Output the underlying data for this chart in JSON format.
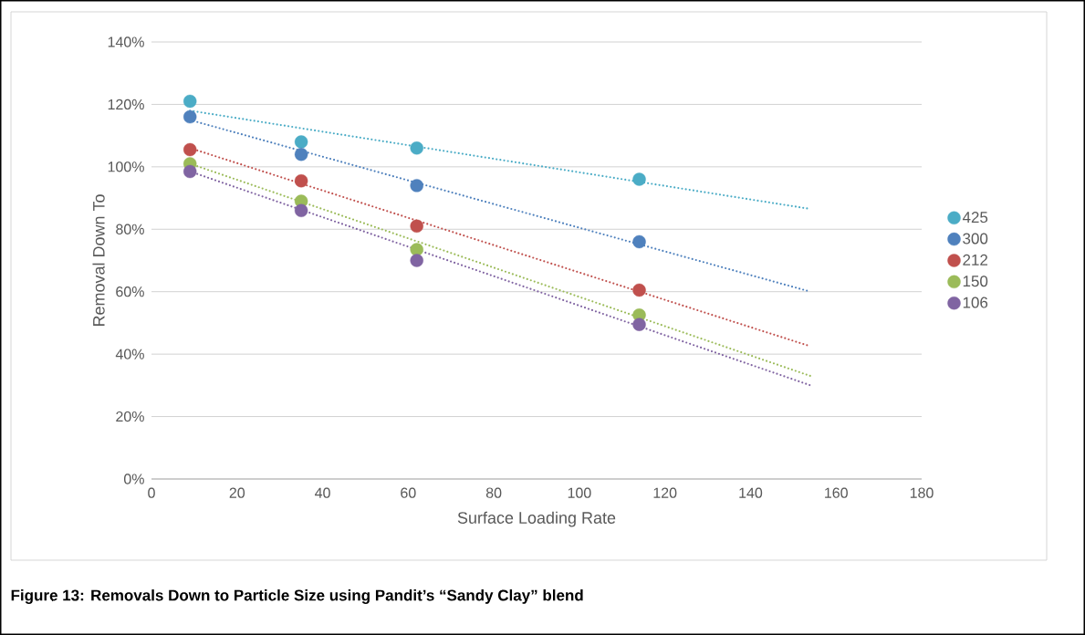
{
  "chart_data": {
    "type": "scatter",
    "xlabel": "Surface Loading Rate",
    "ylabel": "Removal Down To",
    "annotations": [
      "Figure 13:  Removals Down to Particle Size using Pandit’s “Sandy Clay” blend"
    ],
    "xlim": [
      0,
      180
    ],
    "xticks": [
      0,
      20,
      40,
      60,
      80,
      100,
      120,
      140,
      160,
      180
    ],
    "ylim": [
      0,
      140
    ],
    "yticks": [
      {
        "value": 0,
        "label": "0%"
      },
      {
        "value": 20,
        "label": "20%"
      },
      {
        "value": 40,
        "label": "40%"
      },
      {
        "value": 60,
        "label": "60%"
      },
      {
        "value": 80,
        "label": "80%"
      },
      {
        "value": 100,
        "label": "100%"
      },
      {
        "value": 120,
        "label": "120%"
      },
      {
        "value": 140,
        "label": "140%"
      }
    ],
    "grid": "y",
    "legend": "right",
    "marker": "circle",
    "series": [
      {
        "name": "425",
        "color": "#4bacc6",
        "x": [
          9,
          35,
          62,
          114
        ],
        "values": [
          121,
          108,
          106,
          96
        ]
      },
      {
        "name": "300",
        "color": "#4f81bd",
        "x": [
          9,
          35,
          62,
          114
        ],
        "values": [
          116,
          104,
          94,
          76
        ]
      },
      {
        "name": "212",
        "color": "#c0504d",
        "x": [
          9,
          35,
          62,
          114
        ],
        "values": [
          105.5,
          95.5,
          81,
          60.5
        ]
      },
      {
        "name": "150",
        "color": "#9bbb59",
        "x": [
          9,
          35,
          62,
          114
        ],
        "values": [
          101,
          89,
          73.5,
          52.5
        ]
      },
      {
        "name": "106",
        "color": "#8064a2",
        "x": [
          9,
          35,
          62,
          114
        ],
        "values": [
          98.5,
          86,
          70,
          49.5
        ]
      },
      {
        "type": "line",
        "color": "#4bacc6",
        "x": [
          9,
          154
        ],
        "values": [
          118,
          86.5
        ],
        "line_style": "dotted",
        "marker": "none"
      },
      {
        "type": "line",
        "color": "#4f81bd",
        "x": [
          9,
          154
        ],
        "values": [
          115,
          60
        ],
        "line_style": "dotted",
        "marker": "none"
      },
      {
        "type": "line",
        "color": "#c0504d",
        "x": [
          9,
          154
        ],
        "values": [
          106,
          42.5
        ],
        "line_style": "dotted",
        "marker": "none"
      },
      {
        "type": "line",
        "color": "#9bbb59",
        "x": [
          9,
          154
        ],
        "values": [
          101,
          33
        ],
        "line_style": "dotted",
        "marker": "none"
      },
      {
        "type": "line",
        "color": "#8064a2",
        "x": [
          9,
          154
        ],
        "values": [
          98.5,
          30
        ],
        "line_style": "dotted",
        "marker": "none"
      }
    ]
  }
}
